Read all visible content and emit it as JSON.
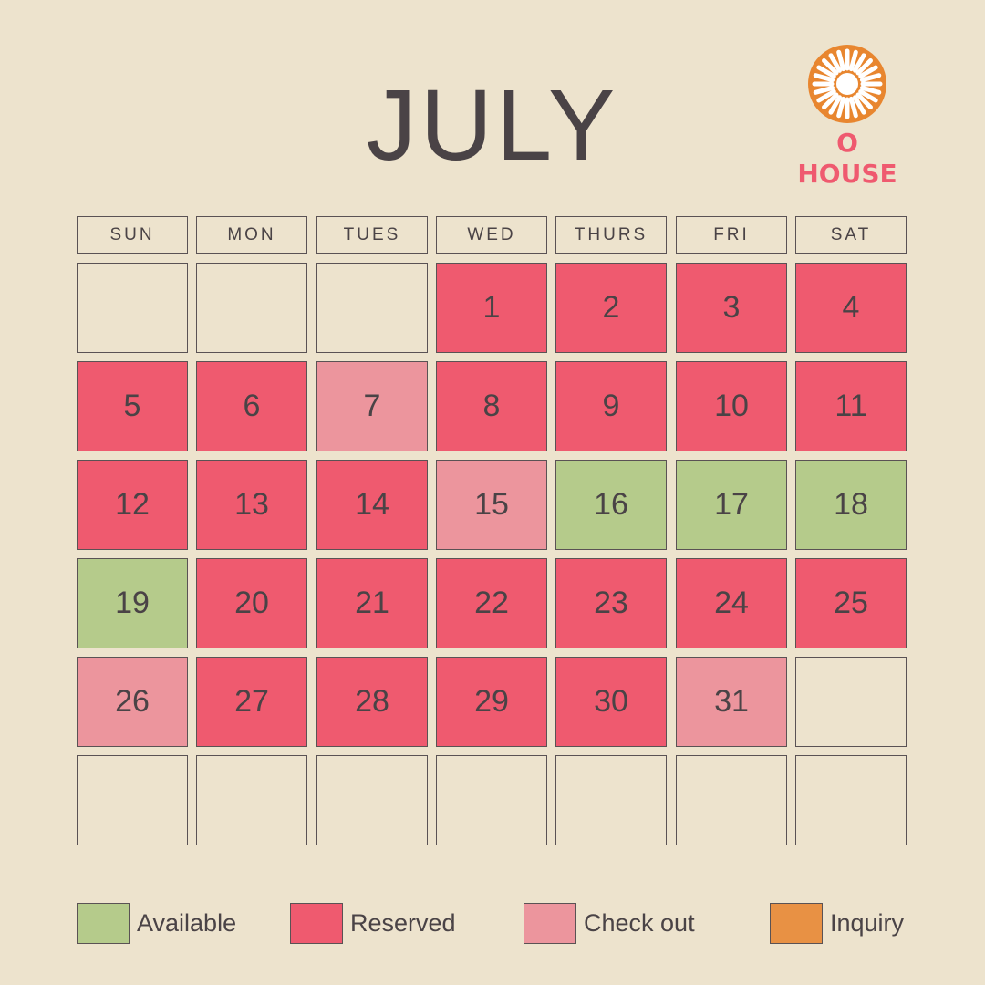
{
  "month": "JULY",
  "brand": {
    "name": "O HOUSE",
    "logo_icon": "sun-icon"
  },
  "colors": {
    "background": "#ede3cd",
    "available": "#b5cb8b",
    "reserved": "#ef5a6f",
    "checkout": "#ec959d",
    "inquiry": "#e89144",
    "empty": "#ede3cd"
  },
  "weekdays": [
    "SUN",
    "MON",
    "TUES",
    "WED",
    "THURS",
    "FRI",
    "SAT"
  ],
  "weeks": [
    [
      {
        "day": "",
        "status": "empty"
      },
      {
        "day": "",
        "status": "empty"
      },
      {
        "day": "",
        "status": "empty"
      },
      {
        "day": "1",
        "status": "reserved"
      },
      {
        "day": "2",
        "status": "reserved"
      },
      {
        "day": "3",
        "status": "reserved"
      },
      {
        "day": "4",
        "status": "reserved"
      }
    ],
    [
      {
        "day": "5",
        "status": "reserved"
      },
      {
        "day": "6",
        "status": "reserved"
      },
      {
        "day": "7",
        "status": "checkout"
      },
      {
        "day": "8",
        "status": "reserved"
      },
      {
        "day": "9",
        "status": "reserved"
      },
      {
        "day": "10",
        "status": "reserved"
      },
      {
        "day": "11",
        "status": "reserved"
      }
    ],
    [
      {
        "day": "12",
        "status": "reserved"
      },
      {
        "day": "13",
        "status": "reserved"
      },
      {
        "day": "14",
        "status": "reserved"
      },
      {
        "day": "15",
        "status": "checkout"
      },
      {
        "day": "16",
        "status": "available"
      },
      {
        "day": "17",
        "status": "available"
      },
      {
        "day": "18",
        "status": "available"
      }
    ],
    [
      {
        "day": "19",
        "status": "available"
      },
      {
        "day": "20",
        "status": "reserved"
      },
      {
        "day": "21",
        "status": "reserved"
      },
      {
        "day": "22",
        "status": "reserved"
      },
      {
        "day": "23",
        "status": "reserved"
      },
      {
        "day": "24",
        "status": "reserved"
      },
      {
        "day": "25",
        "status": "reserved"
      }
    ],
    [
      {
        "day": "26",
        "status": "checkout"
      },
      {
        "day": "27",
        "status": "reserved"
      },
      {
        "day": "28",
        "status": "reserved"
      },
      {
        "day": "29",
        "status": "reserved"
      },
      {
        "day": "30",
        "status": "reserved"
      },
      {
        "day": "31",
        "status": "checkout"
      },
      {
        "day": "",
        "status": "empty"
      }
    ],
    [
      {
        "day": "",
        "status": "empty"
      },
      {
        "day": "",
        "status": "empty"
      },
      {
        "day": "",
        "status": "empty"
      },
      {
        "day": "",
        "status": "empty"
      },
      {
        "day": "",
        "status": "empty"
      },
      {
        "day": "",
        "status": "empty"
      },
      {
        "day": "",
        "status": "empty"
      }
    ]
  ],
  "legend": [
    {
      "label": "Available",
      "status": "available"
    },
    {
      "label": "Reserved",
      "status": "reserved"
    },
    {
      "label": "Check out",
      "status": "checkout"
    },
    {
      "label": "Inquiry",
      "status": "inquiry"
    }
  ]
}
